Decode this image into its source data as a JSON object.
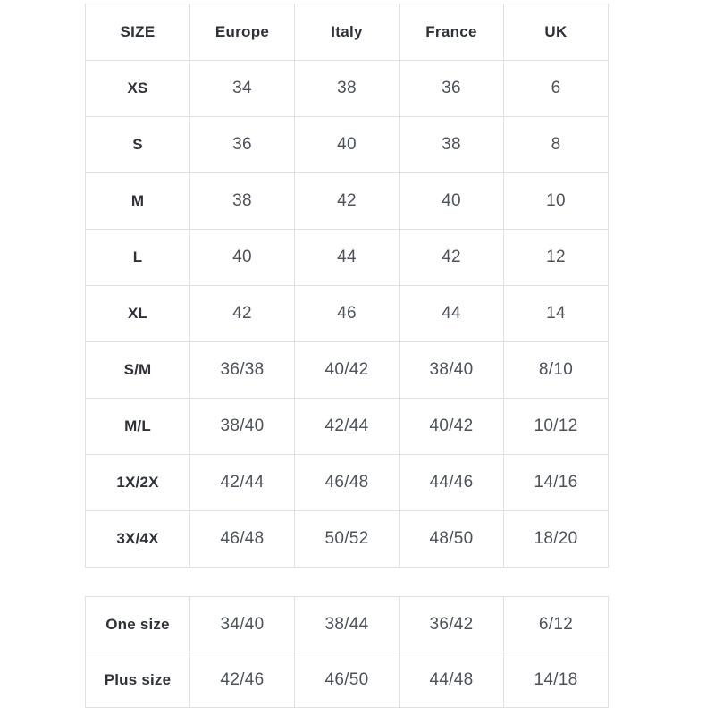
{
  "colors": {
    "background": "#ffffff",
    "border": "#e0e0e3",
    "header_text": "#2e3137",
    "value_text": "#4d525a"
  },
  "size_chart": {
    "headers": [
      "SIZE",
      "Europe",
      "Italy",
      "France",
      "UK"
    ],
    "rows": [
      [
        "XS",
        "34",
        "38",
        "36",
        "6"
      ],
      [
        "S",
        "36",
        "40",
        "38",
        "8"
      ],
      [
        "M",
        "38",
        "42",
        "40",
        "10"
      ],
      [
        "L",
        "40",
        "44",
        "42",
        "12"
      ],
      [
        "XL",
        "42",
        "46",
        "44",
        "14"
      ],
      [
        "S/M",
        "36/38",
        "40/42",
        "38/40",
        "8/10"
      ],
      [
        "M/L",
        "38/40",
        "42/44",
        "40/42",
        "10/12"
      ],
      [
        "1X/2X",
        "42/44",
        "46/48",
        "44/46",
        "14/16"
      ],
      [
        "3X/4X",
        "46/48",
        "50/52",
        "48/50",
        "18/20"
      ]
    ]
  },
  "special_sizes": {
    "rows": [
      [
        "One size",
        "34/40",
        "38/44",
        "36/42",
        "6/12"
      ],
      [
        "Plus size",
        "42/46",
        "46/50",
        "44/48",
        "14/18"
      ]
    ]
  }
}
